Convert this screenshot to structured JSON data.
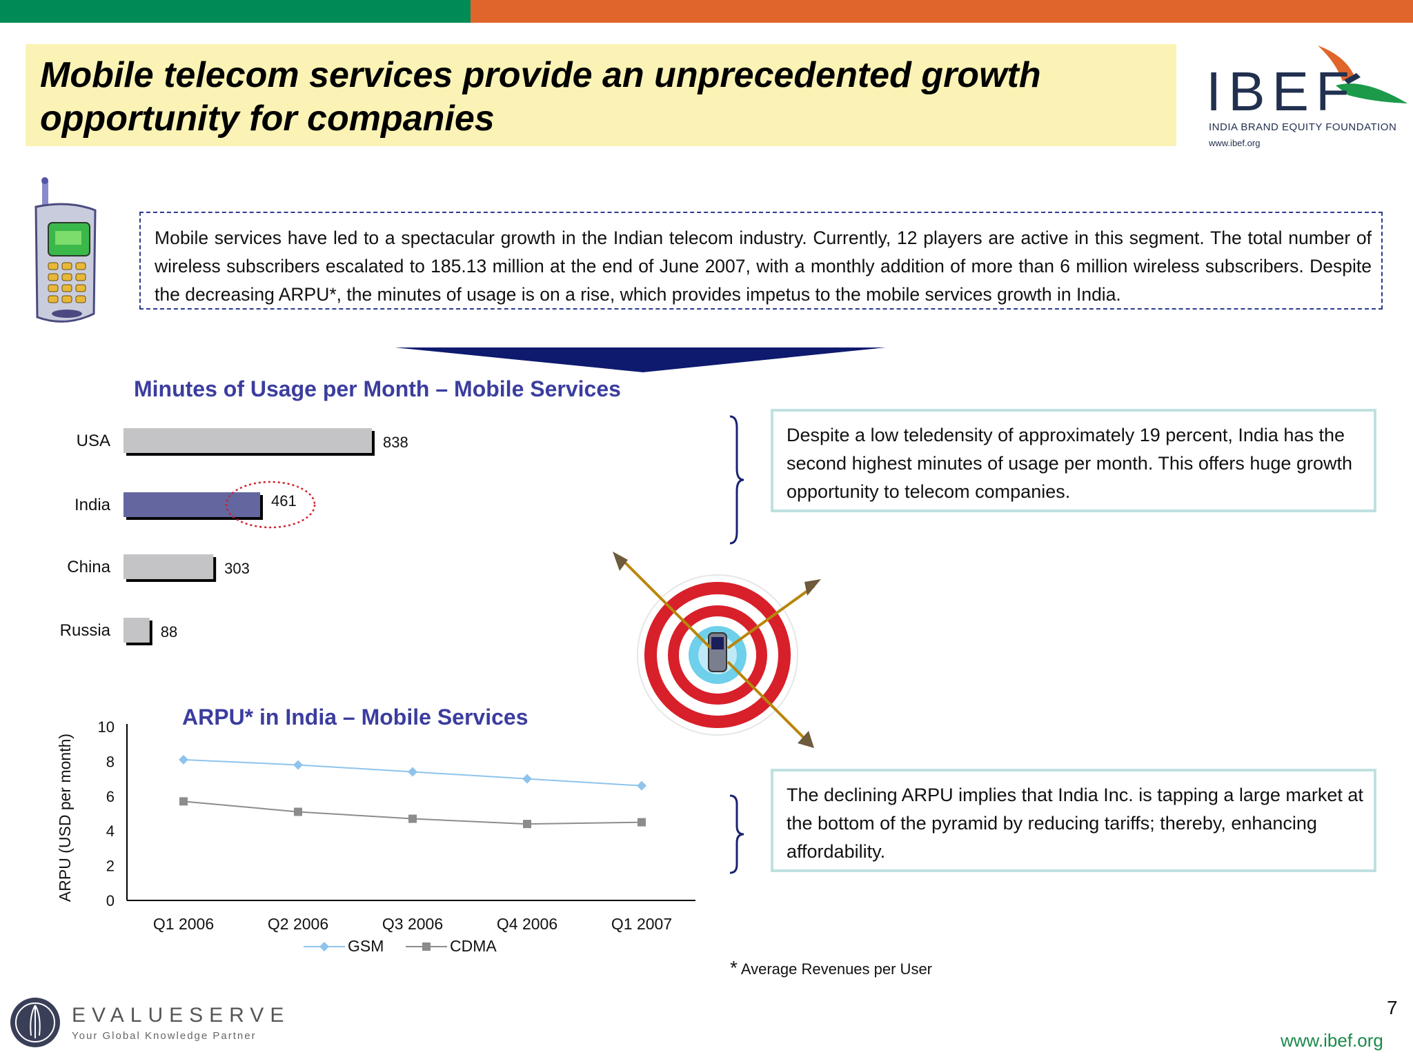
{
  "header": {
    "title_line1": "Mobile telecom services provide an unprecedented growth",
    "title_line2": "opportunity for companies",
    "logo": {
      "name": "IBEF",
      "subtitle": "INDIA BRAND EQUITY FOUNDATION",
      "url": "www.ibef.org"
    }
  },
  "intro": {
    "text": "Mobile services have led to a spectacular growth in the Indian telecom industry. Currently, 12 players are active in this segment. The total number of wireless subscribers escalated to 185.13 million at the end of June 2007, with a monthly addition of more than 6 million wireless subscribers. Despite the decreasing ARPU*, the minutes of usage is on a rise, which provides impetus to the mobile services growth in India."
  },
  "callouts": {
    "first": "Despite a low teledensity of approximately 19 percent, India has the second highest minutes of usage per month. This offers huge growth opportunity to telecom companies.",
    "second": "The declining ARPU implies that India Inc. is tapping a large market at the bottom of the pyramid by reducing tariffs; thereby, enhancing affordability."
  },
  "footnote": {
    "star": "*",
    "text": "Average Revenues per User"
  },
  "footer": {
    "page_number": "7",
    "url": "www.ibef.org",
    "evalueserve_name": "EVALUESERVE",
    "evalueserve_tagline": "Your Global Knowledge Partner"
  },
  "colors": {
    "green_bar": "#008a55",
    "orange_bar": "#e0652a",
    "title_bg": "#fbf3b5",
    "chart_title": "#3b3d9e",
    "india_bar": "#6466a0",
    "other_bar": "#c4c4c6",
    "gsm": "#8ec4ec",
    "cdma": "#8c8c8c"
  },
  "chart_data": [
    {
      "type": "bar",
      "orientation": "horizontal",
      "title": "Minutes of Usage per Month – Mobile Services",
      "categories": [
        "USA",
        "India",
        "China",
        "Russia"
      ],
      "values": [
        838,
        461,
        303,
        88
      ],
      "highlight": "India"
    },
    {
      "type": "line",
      "title": "ARPU* in India – Mobile Services",
      "ylabel": "ARPU (USD per month)",
      "xlabel": "",
      "categories": [
        "Q1 2006",
        "Q2 2006",
        "Q3 2006",
        "Q4 2006",
        "Q1 2007"
      ],
      "ylim": [
        0,
        10
      ],
      "yticks": [
        0,
        2,
        4,
        6,
        8,
        10
      ],
      "legend_position": "bottom",
      "series": [
        {
          "name": "GSM",
          "values": [
            8.1,
            7.8,
            7.4,
            7.0,
            6.6
          ]
        },
        {
          "name": "CDMA",
          "values": [
            5.7,
            5.1,
            4.7,
            4.4,
            4.5
          ]
        }
      ]
    }
  ]
}
